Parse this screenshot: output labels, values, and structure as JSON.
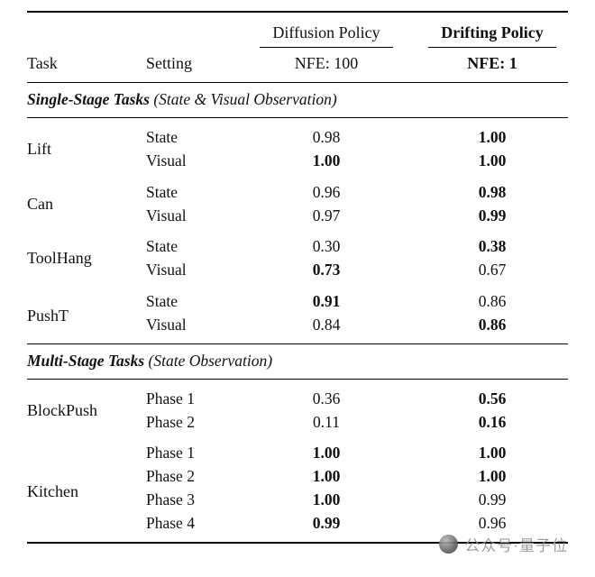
{
  "table": {
    "header": {
      "task": "Task",
      "setting": "Setting",
      "diffusion_group": "Diffusion Policy",
      "drifting_group": "Drifting Policy",
      "diffusion_nfe": "NFE: 100",
      "drifting_nfe": "NFE: 1"
    },
    "sections": [
      {
        "title": "Single-Stage Tasks",
        "subtitle": "(State & Visual Observation)",
        "tasks": [
          {
            "name": "Lift",
            "rows": [
              {
                "setting": "State",
                "diffusion": {
                  "t": "0.98",
                  "b": false
                },
                "drifting": {
                  "t": "1.00",
                  "b": true
                }
              },
              {
                "setting": "Visual",
                "diffusion": {
                  "t": "1.00",
                  "b": true
                },
                "drifting": {
                  "t": "1.00",
                  "b": true
                }
              }
            ]
          },
          {
            "name": "Can",
            "rows": [
              {
                "setting": "State",
                "diffusion": {
                  "t": "0.96",
                  "b": false
                },
                "drifting": {
                  "t": "0.98",
                  "b": true
                }
              },
              {
                "setting": "Visual",
                "diffusion": {
                  "t": "0.97",
                  "b": false
                },
                "drifting": {
                  "t": "0.99",
                  "b": true
                }
              }
            ]
          },
          {
            "name": "ToolHang",
            "rows": [
              {
                "setting": "State",
                "diffusion": {
                  "t": "0.30",
                  "b": false
                },
                "drifting": {
                  "t": "0.38",
                  "b": true
                }
              },
              {
                "setting": "Visual",
                "diffusion": {
                  "t": "0.73",
                  "b": true
                },
                "drifting": {
                  "t": "0.67",
                  "b": false
                }
              }
            ]
          },
          {
            "name": "PushT",
            "rows": [
              {
                "setting": "State",
                "diffusion": {
                  "t": "0.91",
                  "b": true
                },
                "drifting": {
                  "t": "0.86",
                  "b": false
                }
              },
              {
                "setting": "Visual",
                "diffusion": {
                  "t": "0.84",
                  "b": false
                },
                "drifting": {
                  "t": "0.86",
                  "b": true
                }
              }
            ]
          }
        ]
      },
      {
        "title": "Multi-Stage Tasks",
        "subtitle": "(State Observation)",
        "tasks": [
          {
            "name": "BlockPush",
            "rows": [
              {
                "setting": "Phase 1",
                "diffusion": {
                  "t": "0.36",
                  "b": false
                },
                "drifting": {
                  "t": "0.56",
                  "b": true
                }
              },
              {
                "setting": "Phase 2",
                "diffusion": {
                  "t": "0.11",
                  "b": false
                },
                "drifting": {
                  "t": "0.16",
                  "b": true
                }
              }
            ]
          },
          {
            "name": "Kitchen",
            "rows": [
              {
                "setting": "Phase 1",
                "diffusion": {
                  "t": "1.00",
                  "b": true
                },
                "drifting": {
                  "t": "1.00",
                  "b": true
                }
              },
              {
                "setting": "Phase 2",
                "diffusion": {
                  "t": "1.00",
                  "b": true
                },
                "drifting": {
                  "t": "1.00",
                  "b": true
                }
              },
              {
                "setting": "Phase 3",
                "diffusion": {
                  "t": "1.00",
                  "b": true
                },
                "drifting": {
                  "t": "0.99",
                  "b": false
                }
              },
              {
                "setting": "Phase 4",
                "diffusion": {
                  "t": "0.99",
                  "b": true
                },
                "drifting": {
                  "t": "0.96",
                  "b": false
                }
              }
            ]
          }
        ]
      }
    ]
  },
  "watermark": {
    "text": "公众号·量子位"
  }
}
